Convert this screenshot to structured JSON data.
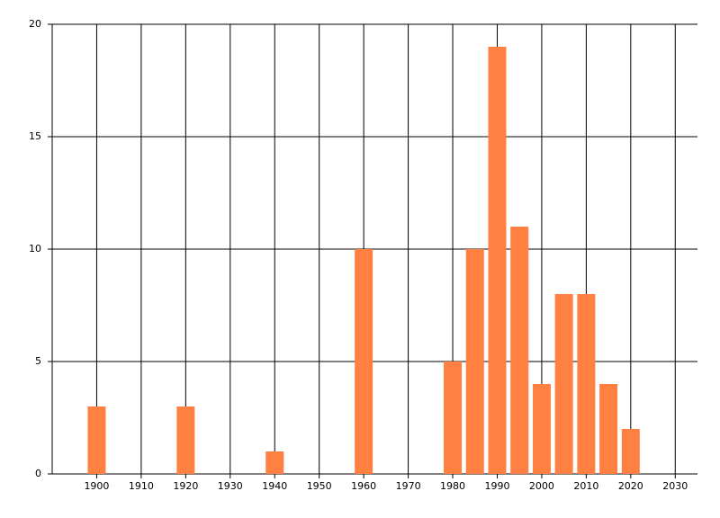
{
  "chart_data": {
    "type": "bar",
    "x": [
      1900,
      1920,
      1940,
      1960,
      1980,
      1985,
      1990,
      1995,
      2000,
      2005,
      2010,
      2015,
      2020
    ],
    "values": [
      3,
      3,
      1,
      10,
      5,
      10,
      19,
      11,
      4,
      8,
      8,
      4,
      2
    ],
    "color": "#ff8040",
    "xlim": [
      1890,
      2035
    ],
    "xticks": [
      1900,
      1910,
      1920,
      1930,
      1940,
      1950,
      1960,
      1970,
      1980,
      1990,
      2000,
      2010,
      2020,
      2030
    ],
    "ylim": [
      0,
      20
    ],
    "yticks": [
      0,
      5,
      10,
      15,
      20
    ],
    "grid": true
  }
}
